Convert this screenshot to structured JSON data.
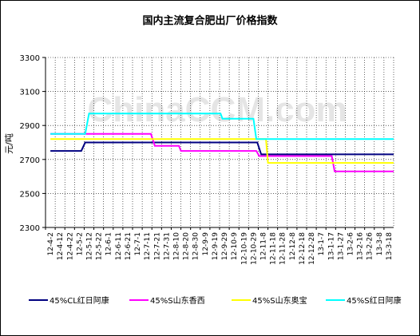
{
  "chart_data": {
    "type": "line",
    "title": "国内主流复合肥出厂价格指数",
    "ylabel": "元/吨",
    "xlabel": "",
    "ylim": [
      2300,
      3300
    ],
    "yticks": [
      2300,
      2500,
      2700,
      2900,
      3100,
      3300
    ],
    "grid": true,
    "legend_position": "bottom",
    "watermark": "ChinaCCM.com",
    "categories": [
      "12-4-2",
      "12-4-12",
      "12-4-22",
      "12-5-2",
      "12-5-12",
      "12-5-22",
      "12-6-1",
      "12-6-11",
      "12-6-21",
      "12-7-1",
      "12-7-11",
      "12-7-21",
      "12-7-31",
      "12-8-10",
      "12-8-20",
      "12-8-30",
      "12-9-9",
      "12-9-19",
      "12-9-29",
      "12-10-9",
      "12-10-19",
      "12-10-29",
      "12-11-8",
      "12-11-18",
      "12-11-28",
      "12-12-8",
      "12-12-18",
      "12-12-28",
      "13-1-7",
      "13-1-17",
      "13-1-27",
      "13-2-6",
      "13-2-16",
      "13-2-26",
      "13-3-8",
      "13-3-18"
    ],
    "series": [
      {
        "name": "45%CL红日阿康",
        "color": "#000080",
        "points": [
          [
            0,
            2750
          ],
          [
            3.2,
            2750
          ],
          [
            3.6,
            2800
          ],
          [
            21.4,
            2800
          ],
          [
            21.8,
            2730
          ],
          [
            29.1,
            2730
          ],
          [
            29.3,
            2730
          ],
          [
            35.5,
            2730
          ]
        ]
      },
      {
        "name": "45%S山东香西",
        "color": "#ff00ff",
        "points": [
          [
            0,
            2850
          ],
          [
            10.4,
            2850
          ],
          [
            10.8,
            2780
          ],
          [
            13.3,
            2780
          ],
          [
            13.5,
            2750
          ],
          [
            21.3,
            2750
          ],
          [
            21.6,
            2720
          ],
          [
            29.1,
            2720
          ],
          [
            29.4,
            2630
          ],
          [
            35.5,
            2630
          ]
        ]
      },
      {
        "name": "45%S山东奥宝",
        "color": "#ffff00",
        "points": [
          [
            0,
            2820
          ],
          [
            22.3,
            2820
          ],
          [
            22.5,
            2680
          ],
          [
            35.5,
            2680
          ]
        ]
      },
      {
        "name": "45%S红日阿康",
        "color": "#00ffff",
        "points": [
          [
            0,
            2850
          ],
          [
            3.6,
            2850
          ],
          [
            4.0,
            2970
          ],
          [
            17.6,
            2970
          ],
          [
            17.8,
            2940
          ],
          [
            21.0,
            2940
          ],
          [
            21.3,
            2820
          ],
          [
            35.5,
            2820
          ]
        ]
      }
    ]
  }
}
